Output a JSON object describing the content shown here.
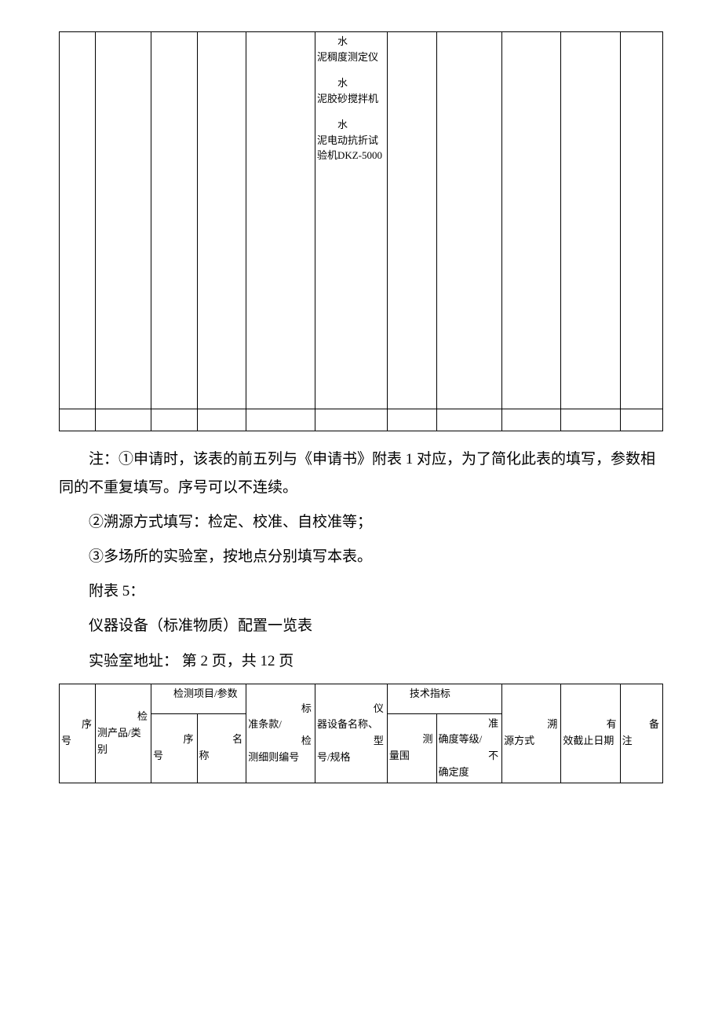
{
  "top_table": {
    "equipment_cell": {
      "items": [
        {
          "name_prefix": "水",
          "name_rest": "泥稠度测定仪"
        },
        {
          "name_prefix": "水",
          "name_rest": "泥胶砂搅拌机"
        },
        {
          "name_prefix": "水",
          "name_rest": "泥电动抗折试验机DKZ-5000"
        }
      ]
    }
  },
  "notes": {
    "line1": "注：①申请时，该表的前五列与《申请书》附表 1 对应，为了简化此表的填写，参数相同的不重复填写。序号可以不连续。",
    "line2": "②溯源方式填写：检定、校准、自校准等；",
    "line3": "③多场所的实验室，按地点分别填写本表。",
    "appendix": "附表 5：",
    "title": "仪器设备（标准物质）配置一览表",
    "address": "实验室地址：  第 2 页，共 12 页"
  },
  "bottom_table": {
    "headers": {
      "seq": {
        "p1": "序",
        "p2": "号"
      },
      "product": {
        "p1": "检",
        "p2": "测产品/类别"
      },
      "param_group": "检测项目/参数",
      "param_seq": {
        "p1": "序",
        "p2": "号"
      },
      "param_name": {
        "p1": "名",
        "p2": "称"
      },
      "standard": {
        "p1": "标",
        "p2": "准条款/",
        "p3": "检",
        "p4": "测细则编号"
      },
      "instrument": {
        "p1": "仪",
        "p2": "器设备名称、",
        "p3": "型",
        "p4": "号/规格"
      },
      "tech_group": "技术指标",
      "range": {
        "p1": "测",
        "p2": "量围"
      },
      "accuracy": {
        "p1": "准",
        "p2": "确度等级/",
        "p3": "不",
        "p4": "确定度"
      },
      "trace": {
        "p1": "溯",
        "p2": "源方式"
      },
      "valid": {
        "p1": "有",
        "p2": "效截止日期"
      },
      "remark": {
        "p1": "备",
        "p2": "注"
      }
    }
  }
}
